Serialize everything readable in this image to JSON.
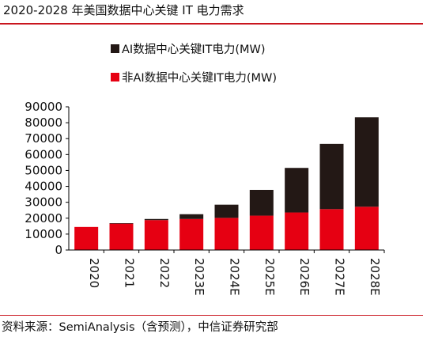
{
  "title": "2020-2028 年美国数据中心关键 IT 电力需求",
  "source": "资料来源：SemiAnalysis（含预测），中信证券研究部",
  "colors": {
    "ai": "#231815",
    "non_ai": "#e60012",
    "rule": "#c9151e",
    "axis": "#000000"
  },
  "chart_data": {
    "type": "bar",
    "stacked": true,
    "title": "2020-2028 年美国数据中心关键 IT 电力需求",
    "xlabel": "",
    "ylabel": "",
    "categories": [
      "2020",
      "2021",
      "2022",
      "2023E",
      "2024E",
      "2025E",
      "2026E",
      "2027E",
      "2028E"
    ],
    "series": [
      {
        "name": "非AI数据中心关键IT电力(MW)",
        "color": "#e60012",
        "values": [
          14500,
          16600,
          18800,
          19500,
          20200,
          21600,
          23600,
          25700,
          27200
        ]
      },
      {
        "name": "AI数据中心关键IT电力(MW)",
        "color": "#231815",
        "values": [
          0,
          300,
          700,
          3000,
          8300,
          16200,
          28000,
          41000,
          56200
        ]
      }
    ],
    "ylim": [
      0,
      90000
    ],
    "yticks": [
      0,
      10000,
      20000,
      30000,
      40000,
      50000,
      60000,
      70000,
      80000,
      90000
    ],
    "grid": false,
    "legend_position": "top-center",
    "legend_order": [
      "AI数据中心关键IT电力(MW)",
      "非AI数据中心关键IT电力(MW)"
    ]
  }
}
